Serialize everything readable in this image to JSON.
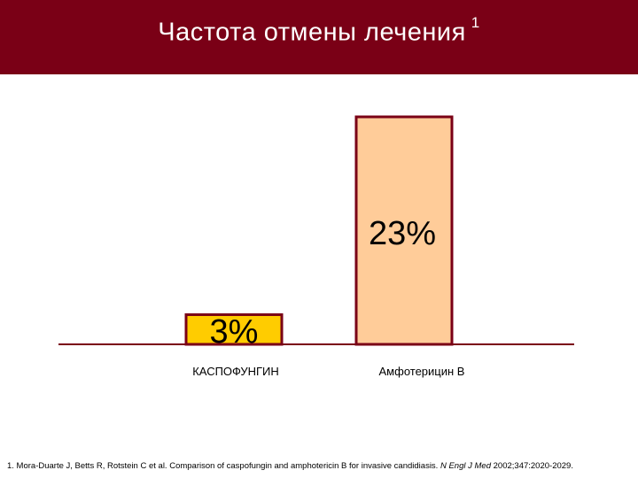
{
  "slide": {
    "title": "Частота отмены лечения",
    "title_superscript": "1"
  },
  "colors": {
    "header_bg": "#7a0016",
    "bar_border": "#7a0016",
    "baseline": "#7a0016"
  },
  "chart_data": {
    "type": "bar",
    "categories": [
      "КАСПОФУНГИН",
      "Амфотерицин В"
    ],
    "values": [
      3,
      23
    ],
    "data_labels": [
      "3%",
      "23%"
    ],
    "bar_colors": [
      "#ffcc00",
      "#ffcc99"
    ],
    "ylim": [
      0,
      26
    ],
    "grid": false,
    "legend": "none"
  },
  "footnote": {
    "text": "1. Mora-Duarte J, Betts R, Rotstein C et al. Comparison of caspofungin and amphotericin B for invasive candidiasis.",
    "journal": "N Engl J Med",
    "citation": "2002;347:2020-2029."
  }
}
